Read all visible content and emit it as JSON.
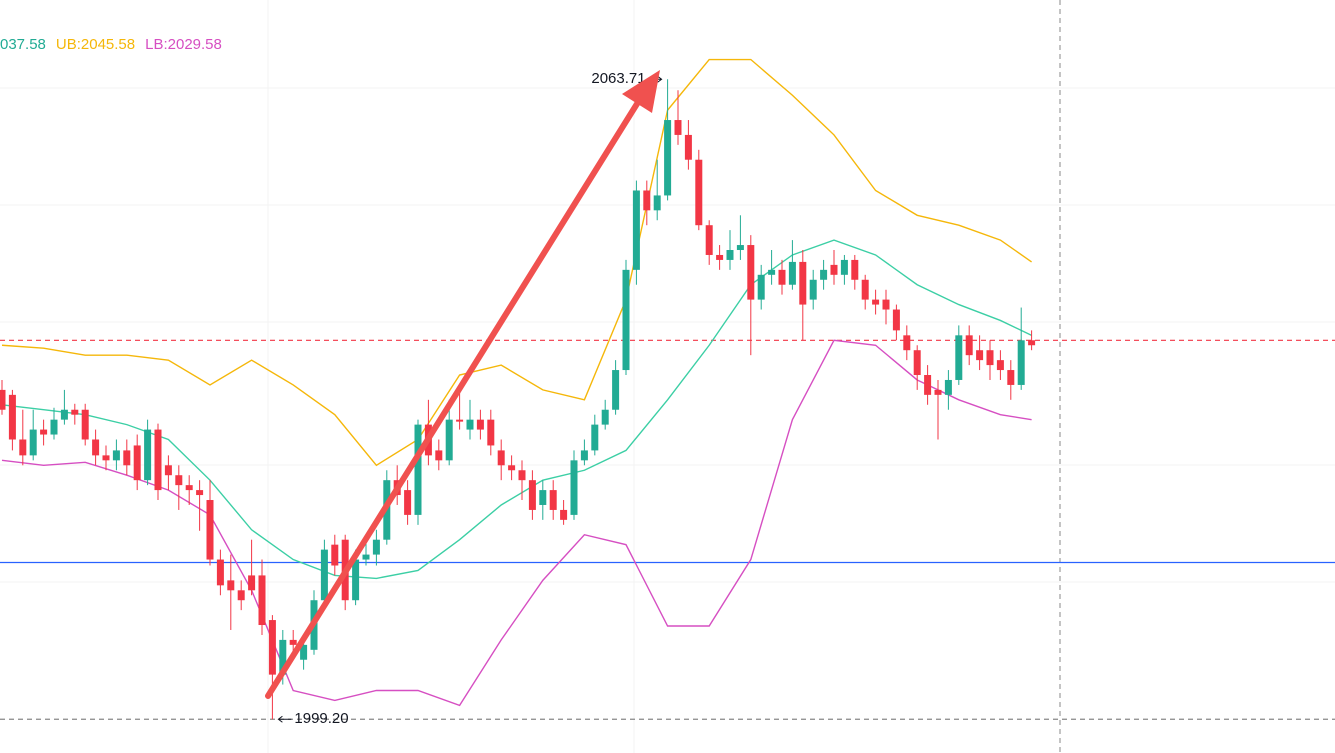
{
  "chart_data": {
    "type": "candlestick",
    "ylim": [
      1995.8,
      2071.7
    ],
    "up_color": "#22ab94",
    "down_color": "#f23645",
    "legend": [
      {
        "text": "037.58",
        "color": "#22ab94"
      },
      {
        "text": "UB:2045.58",
        "color": "#f5b70a"
      },
      {
        "text": "LB:2029.58",
        "color": "#d64fc2"
      }
    ],
    "candles": [
      [
        2032.4,
        2033.4,
        2029.9,
        2030.4
      ],
      [
        2031.9,
        2032.4,
        2026.3,
        2027.4
      ],
      [
        2027.4,
        2030.4,
        2024.8,
        2025.8
      ],
      [
        2025.8,
        2030.4,
        2025.3,
        2028.4
      ],
      [
        2028.4,
        2029.4,
        2026.8,
        2027.9
      ],
      [
        2027.9,
        2030.6,
        2027.4,
        2029.4
      ],
      [
        2029.4,
        2032.4,
        2028.9,
        2030.4
      ],
      [
        2030.4,
        2031.0,
        2028.9,
        2029.9
      ],
      [
        2030.4,
        2031.0,
        2026.8,
        2027.4
      ],
      [
        2027.4,
        2028.4,
        2024.8,
        2025.8
      ],
      [
        2025.8,
        2026.8,
        2024.3,
        2025.3
      ],
      [
        2025.3,
        2027.4,
        2024.3,
        2026.3
      ],
      [
        2026.3,
        2027.4,
        2023.8,
        2024.8
      ],
      [
        2026.8,
        2027.9,
        2022.3,
        2023.3
      ],
      [
        2023.3,
        2029.4,
        2022.8,
        2028.4
      ],
      [
        2028.4,
        2029.0,
        2021.3,
        2022.3
      ],
      [
        2024.8,
        2025.8,
        2022.3,
        2023.8
      ],
      [
        2023.8,
        2024.8,
        2020.3,
        2022.8
      ],
      [
        2022.8,
        2023.8,
        2020.8,
        2022.3
      ],
      [
        2022.3,
        2023.3,
        2018.2,
        2021.8
      ],
      [
        2021.3,
        2023.3,
        2014.7,
        2015.3
      ],
      [
        2015.3,
        2016.3,
        2011.7,
        2012.7
      ],
      [
        2013.2,
        2015.8,
        2008.2,
        2012.2
      ],
      [
        2012.2,
        2013.2,
        2010.2,
        2011.2
      ],
      [
        2013.7,
        2017.3,
        2011.7,
        2012.2
      ],
      [
        2013.7,
        2015.3,
        2007.7,
        2008.7
      ],
      [
        2009.2,
        2009.7,
        1999.2,
        2003.7
      ],
      [
        2003.7,
        2008.2,
        2002.7,
        2007.2
      ],
      [
        2007.2,
        2008.2,
        2005.2,
        2006.7
      ],
      [
        2005.2,
        2007.7,
        2004.2,
        2006.7
      ],
      [
        2006.2,
        2012.2,
        2005.7,
        2011.2
      ],
      [
        2011.2,
        2017.3,
        2010.7,
        2016.3
      ],
      [
        2016.8,
        2017.8,
        2013.7,
        2014.7
      ],
      [
        2017.3,
        2017.8,
        2010.2,
        2011.2
      ],
      [
        2011.2,
        2016.3,
        2010.7,
        2015.3
      ],
      [
        2015.3,
        2017.3,
        2014.7,
        2015.8
      ],
      [
        2015.8,
        2018.3,
        2014.7,
        2017.3
      ],
      [
        2017.3,
        2024.3,
        2016.8,
        2023.3
      ],
      [
        2023.3,
        2024.8,
        2020.8,
        2021.8
      ],
      [
        2022.3,
        2023.3,
        2018.8,
        2019.8
      ],
      [
        2019.8,
        2029.4,
        2018.8,
        2028.9
      ],
      [
        2028.9,
        2031.4,
        2024.8,
        2025.8
      ],
      [
        2026.3,
        2027.4,
        2024.3,
        2025.3
      ],
      [
        2025.3,
        2031.4,
        2024.8,
        2029.4
      ],
      [
        2029.4,
        2032.4,
        2028.4,
        2029.2
      ],
      [
        2028.4,
        2031.4,
        2027.4,
        2029.4
      ],
      [
        2029.4,
        2030.4,
        2027.4,
        2028.4
      ],
      [
        2029.4,
        2030.4,
        2025.8,
        2026.8
      ],
      [
        2026.3,
        2027.4,
        2023.3,
        2024.8
      ],
      [
        2024.8,
        2025.8,
        2023.3,
        2024.3
      ],
      [
        2024.3,
        2025.3,
        2021.3,
        2023.3
      ],
      [
        2023.3,
        2024.3,
        2019.3,
        2020.3
      ],
      [
        2020.8,
        2023.3,
        2019.3,
        2022.3
      ],
      [
        2022.3,
        2023.3,
        2019.3,
        2020.3
      ],
      [
        2020.3,
        2021.3,
        2018.8,
        2019.3
      ],
      [
        2019.8,
        2026.3,
        2019.3,
        2025.3
      ],
      [
        2025.3,
        2027.4,
        2024.8,
        2026.3
      ],
      [
        2026.3,
        2029.9,
        2025.8,
        2028.9
      ],
      [
        2028.9,
        2031.4,
        2028.4,
        2030.4
      ],
      [
        2030.4,
        2035.4,
        2029.9,
        2034.4
      ],
      [
        2034.4,
        2045.5,
        2033.9,
        2044.5
      ],
      [
        2044.5,
        2053.5,
        2043.0,
        2052.5
      ],
      [
        2052.5,
        2053.5,
        2049.0,
        2050.5
      ],
      [
        2050.5,
        2055.6,
        2049.5,
        2052.0
      ],
      [
        2052.0,
        2063.71,
        2051.5,
        2059.6
      ],
      [
        2059.6,
        2062.6,
        2057.1,
        2058.1
      ],
      [
        2058.1,
        2059.6,
        2054.6,
        2055.6
      ],
      [
        2055.6,
        2056.6,
        2048.5,
        2049.0
      ],
      [
        2049.0,
        2049.5,
        2045.0,
        2046.0
      ],
      [
        2046.0,
        2047.0,
        2044.5,
        2045.5
      ],
      [
        2045.5,
        2048.5,
        2044.5,
        2046.5
      ],
      [
        2046.5,
        2050.0,
        2045.5,
        2047.0
      ],
      [
        2047.0,
        2048.0,
        2035.9,
        2041.5
      ],
      [
        2041.5,
        2045.0,
        2040.5,
        2044.0
      ],
      [
        2044.0,
        2046.5,
        2043.0,
        2044.5
      ],
      [
        2044.5,
        2045.5,
        2042.0,
        2043.0
      ],
      [
        2043.0,
        2047.5,
        2042.5,
        2045.3
      ],
      [
        2045.3,
        2046.5,
        2037.4,
        2041.0
      ],
      [
        2041.5,
        2044.5,
        2040.5,
        2043.5
      ],
      [
        2043.5,
        2045.5,
        2042.5,
        2044.5
      ],
      [
        2045.0,
        2046.5,
        2043.0,
        2044.0
      ],
      [
        2044.0,
        2046.0,
        2043.0,
        2045.5
      ],
      [
        2045.5,
        2046.0,
        2042.5,
        2043.5
      ],
      [
        2043.5,
        2044.0,
        2040.5,
        2041.5
      ],
      [
        2041.5,
        2042.5,
        2040.0,
        2041.0
      ],
      [
        2041.5,
        2042.5,
        2039.0,
        2040.5
      ],
      [
        2040.5,
        2041.0,
        2037.4,
        2038.4
      ],
      [
        2037.9,
        2038.9,
        2035.4,
        2036.4
      ],
      [
        2036.4,
        2036.9,
        2032.4,
        2033.9
      ],
      [
        2033.9,
        2034.9,
        2030.9,
        2031.9
      ],
      [
        2032.4,
        2033.4,
        2027.4,
        2031.9
      ],
      [
        2031.9,
        2034.4,
        2030.4,
        2033.4
      ],
      [
        2033.4,
        2038.9,
        2032.9,
        2037.9
      ],
      [
        2037.9,
        2038.9,
        2034.9,
        2035.9
      ],
      [
        2036.4,
        2037.9,
        2034.4,
        2035.4
      ],
      [
        2036.4,
        2037.4,
        2033.4,
        2034.9
      ],
      [
        2035.4,
        2036.4,
        2033.4,
        2034.4
      ],
      [
        2034.4,
        2035.4,
        2031.4,
        2032.9
      ],
      [
        2032.9,
        2040.7,
        2032.4,
        2037.4
      ],
      [
        2037.4,
        2038.4,
        2036.4,
        2036.9
      ]
    ],
    "series": [
      {
        "color": "#f5b70a",
        "x": [
          0,
          4,
          8,
          12,
          16,
          20,
          24,
          28,
          32,
          36,
          40,
          44,
          48,
          52,
          56,
          60,
          64,
          68,
          72,
          76,
          80,
          84,
          88,
          92,
          96,
          99
        ],
        "values": [
          2036.9,
          2036.6,
          2035.9,
          2035.9,
          2035.4,
          2032.9,
          2035.4,
          2032.9,
          2029.9,
          2024.8,
          2027.4,
          2033.9,
          2034.9,
          2032.4,
          2031.4,
          2041.5,
          2060.6,
          2065.7,
          2065.7,
          2062.1,
          2058.1,
          2052.5,
          2050.0,
          2049.0,
          2047.5,
          2045.3
        ]
      },
      {
        "color": "#3ccfa5",
        "x": [
          0,
          4,
          8,
          12,
          16,
          20,
          24,
          28,
          32,
          36,
          40,
          44,
          48,
          52,
          56,
          60,
          64,
          68,
          72,
          76,
          80,
          84,
          88,
          92,
          96,
          99
        ],
        "values": [
          2030.9,
          2030.4,
          2029.9,
          2028.9,
          2027.4,
          2023.3,
          2018.3,
          2015.3,
          2013.7,
          2013.4,
          2014.2,
          2017.3,
          2020.8,
          2023.3,
          2024.3,
          2026.3,
          2031.4,
          2036.9,
          2043.0,
          2046.0,
          2047.5,
          2046.0,
          2043.0,
          2041.0,
          2039.4,
          2037.9
        ]
      },
      {
        "color": "#d64fc2",
        "x": [
          0,
          4,
          8,
          12,
          16,
          20,
          24,
          28,
          32,
          36,
          40,
          44,
          48,
          52,
          56,
          60,
          64,
          68,
          72,
          76,
          80,
          84,
          88,
          92,
          96,
          99
        ],
        "values": [
          2025.3,
          2024.8,
          2025.1,
          2023.8,
          2022.3,
          2019.8,
          2012.2,
          2002.1,
          2001.1,
          2002.1,
          2002.1,
          2000.6,
          2007.2,
          2013.2,
          2017.8,
          2016.8,
          2008.6,
          2008.6,
          2015.3,
          2029.4,
          2037.4,
          2036.9,
          2033.4,
          2031.4,
          2029.9,
          2029.4
        ]
      }
    ],
    "hlines": [
      {
        "value": 2037.4,
        "color": "#f23645",
        "style": "dashed"
      },
      {
        "value": 2015.0,
        "color": "#2962ff",
        "style": "solid"
      },
      {
        "value": 1999.2,
        "color": "#888888",
        "style": "dashed"
      }
    ],
    "annotations": [
      {
        "text": "2063.71",
        "candle": 64,
        "at": "high",
        "side": "left"
      },
      {
        "text": "1999.20",
        "candle": 26,
        "at": "low",
        "side": "right"
      }
    ]
  }
}
